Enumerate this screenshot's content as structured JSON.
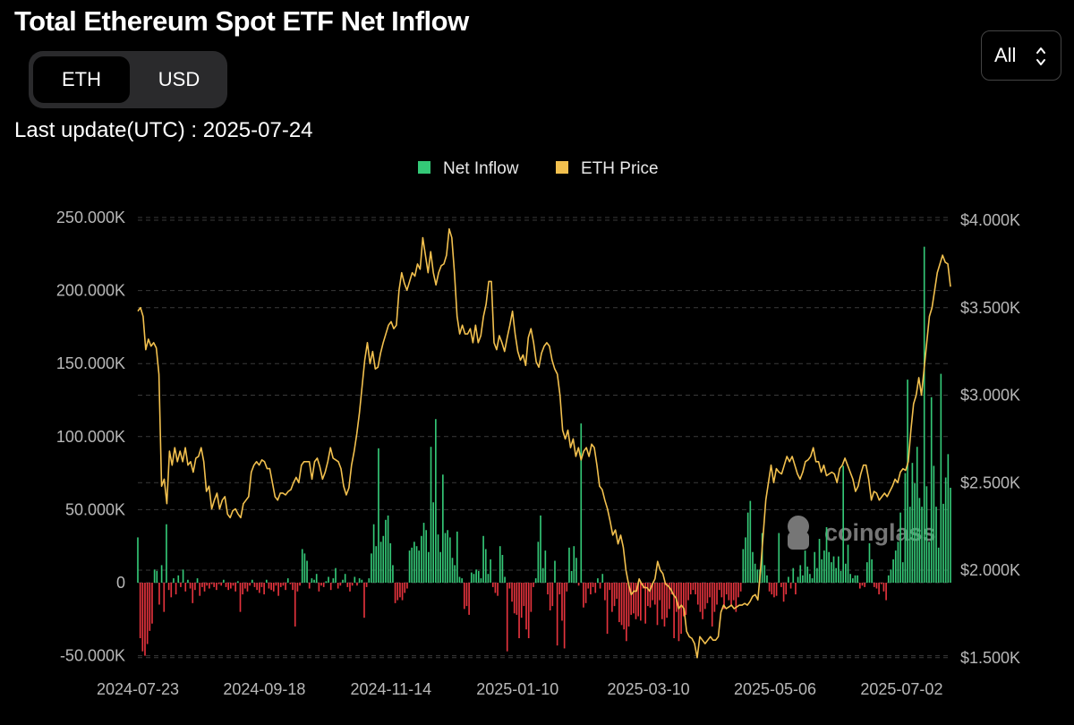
{
  "title": "Total Ethereum Spot ETF Net Inflow",
  "unit_toggle": {
    "options": [
      "ETH",
      "USD"
    ],
    "selected": "ETH"
  },
  "range_select": {
    "value": "All"
  },
  "last_update": {
    "label": "Last update(UTC) : ",
    "value": "2025-07-24"
  },
  "watermark": "coinglass",
  "colors": {
    "inflow_pos": "#34c877",
    "inflow_neg": "#e5333d",
    "price": "#f2c04e",
    "grid": "#3a3a3a",
    "axis_text": "#b8b8b8"
  },
  "chart_data": {
    "type": "bar",
    "legend": [
      {
        "name": "Net Inflow",
        "color": "#34c877"
      },
      {
        "name": "ETH Price",
        "color": "#f2c04e"
      }
    ],
    "legend_position": "top-center",
    "grid": true,
    "x_ticks": [
      "2024-07-23",
      "2024-09-18",
      "2024-11-14",
      "2025-01-10",
      "2025-03-10",
      "2025-05-06",
      "2025-07-02"
    ],
    "y_left": {
      "ticks": [
        250000,
        200000,
        150000,
        100000,
        50000,
        0,
        -50000
      ],
      "labels": [
        "250.000K",
        "200.000K",
        "150.000K",
        "100.000K",
        "50.000K",
        "0",
        "-50.000K"
      ],
      "range": [
        -55000,
        252000
      ]
    },
    "y_right": {
      "ticks": [
        4000,
        3500,
        3000,
        2500,
        2000,
        1500
      ],
      "labels": [
        "$4.000K",
        "$3.500K",
        "$3.000K",
        "$2.500K",
        "$2.000K",
        "$1.500K"
      ],
      "range": [
        1475,
        4010
      ]
    },
    "series": [
      {
        "name": "Net Inflow",
        "axis": "left",
        "x_start": "2024-07-23",
        "x_end": "2025-07-24",
        "values": [
          31000,
          -38000,
          -47000,
          -50000,
          -42000,
          -33000,
          -28000,
          9000,
          8000,
          -15000,
          12000,
          -20000,
          40000,
          -5000,
          -10000,
          3000,
          -8000,
          5000,
          -3000,
          9000,
          -6000,
          2000,
          -4000,
          -14000,
          -5000,
          3000,
          -9000,
          -3000,
          -6000,
          -2000,
          -4000,
          -1000,
          -3000,
          -5000,
          -1000,
          -2000,
          2000,
          -3000,
          -5000,
          -4000,
          -2000,
          -6000,
          1000,
          -20000,
          -8000,
          -4000,
          -6000,
          -2000,
          2000,
          -3000,
          -5000,
          -7000,
          -3000,
          -8000,
          2000,
          -4000,
          -5000,
          -6000,
          -2000,
          -9000,
          -3000,
          -2000,
          -5000,
          3000,
          -1000,
          -5000,
          -30000,
          -6000,
          -2000,
          23000,
          20000,
          15000,
          -4000,
          3000,
          2000,
          6000,
          -6000,
          -2000,
          -3000,
          1000,
          4000,
          -5000,
          3000,
          10000,
          -4000,
          -2000,
          2000,
          6000,
          -3000,
          -6000,
          -2000,
          4000,
          -2000,
          3000,
          2000,
          -24000,
          -3000,
          3000,
          20000,
          40000,
          25000,
          92000,
          28000,
          32000,
          43000,
          46000,
          27000,
          12000,
          -14000,
          -12000,
          -10000,
          -12000,
          -7000,
          -4000,
          22000,
          24000,
          28000,
          25000,
          22000,
          32000,
          41000,
          36000,
          21000,
          93000,
          55000,
          112000,
          33000,
          21000,
          74000,
          34000,
          36000,
          31000,
          17000,
          12000,
          35000,
          4000,
          3000,
          -18000,
          -16000,
          -22000,
          7000,
          6000,
          9000,
          8000,
          3000,
          32000,
          23000,
          6000,
          16000,
          -3000,
          -7000,
          -9000,
          25000,
          19000,
          4000,
          -47000,
          -4000,
          -13000,
          -21000,
          -22000,
          -38000,
          -24000,
          -16000,
          -32000,
          -38000,
          -20000,
          -3000,
          3000,
          28000,
          46000,
          10000,
          22000,
          -8000,
          -19000,
          -16000,
          15000,
          -43000,
          -8000,
          -26000,
          -45000,
          -6000,
          24000,
          8000,
          25000,
          17000,
          -2000,
          109000,
          -17000,
          -14000,
          -4000,
          -8000,
          -3000,
          -7000,
          3000,
          -4000,
          6000,
          -12000,
          -35000,
          -5000,
          -20000,
          -16000,
          -11000,
          -27000,
          -29000,
          -32000,
          -40000,
          -30000,
          -22000,
          -21000,
          -25000,
          -23000,
          -26000,
          -4000,
          -28000,
          -16000,
          -17000,
          -12000,
          -15000,
          -29000,
          -12000,
          -25000,
          -30000,
          -24000,
          -18000,
          -8000,
          -38000,
          -20000,
          -40000,
          -35000,
          -23000,
          -22000,
          -12000,
          -8000,
          -5000,
          -8000,
          -15000,
          -20000,
          -25000,
          -18000,
          -14000,
          -10000,
          -30000,
          -20000,
          -15000,
          -5000,
          -10000,
          -18000,
          -8000,
          -12000,
          -16000,
          -12000,
          -20000,
          -10000,
          -6000,
          23000,
          31000,
          48000,
          56000,
          21000,
          13000,
          9000,
          9000,
          34000,
          12000,
          5000,
          -6000,
          -8000,
          -10000,
          -9000,
          34000,
          -3000,
          -13000,
          -8000,
          4000,
          -4000,
          10000,
          -8000,
          4000,
          12000,
          5000,
          22000,
          11000,
          6000,
          3000,
          21000,
          10000,
          30000,
          16000,
          22000,
          38000,
          21000,
          14000,
          18000,
          10000,
          18000,
          8000,
          80000,
          13000,
          26000,
          6000,
          3000,
          5000,
          5000,
          -4000,
          -2000,
          -3000,
          14000,
          27000,
          16000,
          -3000,
          -4000,
          -8000,
          -1000,
          -6000,
          -12000,
          5000,
          9000,
          16000,
          22000,
          28000,
          48000,
          14000,
          75000,
          139000,
          52000,
          82000,
          68000,
          93000,
          58000,
          52000,
          230000,
          66000,
          28000,
          127000,
          80000,
          52000,
          24000,
          143000,
          54000,
          72000,
          88000,
          65000
        ]
      },
      {
        "name": "ETH Price",
        "axis": "right",
        "x_start": "2024-07-23",
        "x_end": "2025-07-24",
        "values": [
          3480,
          3500,
          3450,
          3260,
          3320,
          3280,
          3300,
          3270,
          3120,
          2480,
          2520,
          2380,
          2680,
          2600,
          2700,
          2620,
          2680,
          2620,
          2700,
          2600,
          2620,
          2560,
          2640,
          2650,
          2700,
          2620,
          2450,
          2480,
          2350,
          2400,
          2440,
          2350,
          2400,
          2420,
          2320,
          2300,
          2340,
          2350,
          2320,
          2300,
          2380,
          2400,
          2420,
          2560,
          2600,
          2620,
          2600,
          2630,
          2620,
          2580,
          2580,
          2500,
          2420,
          2400,
          2440,
          2440,
          2430,
          2450,
          2460,
          2500,
          2530,
          2500,
          2600,
          2620,
          2620,
          2620,
          2520,
          2620,
          2640,
          2590,
          2520,
          2560,
          2620,
          2700,
          2640,
          2630,
          2620,
          2580,
          2480,
          2430,
          2470,
          2600,
          2680,
          2780,
          2900,
          3050,
          3200,
          3300,
          3180,
          3250,
          3150,
          3160,
          3240,
          3300,
          3350,
          3400,
          3420,
          3380,
          3400,
          3600,
          3700,
          3640,
          3600,
          3650,
          3700,
          3680,
          3750,
          3720,
          3900,
          3800,
          3700,
          3820,
          3700,
          3630,
          3700,
          3740,
          3750,
          3800,
          3950,
          3900,
          3700,
          3450,
          3350,
          3400,
          3350,
          3350,
          3380,
          3300,
          3400,
          3300,
          3340,
          3450,
          3520,
          3650,
          3650,
          3300,
          3260,
          3340,
          3300,
          3250,
          3330,
          3400,
          3480,
          3350,
          3250,
          3200,
          3230,
          3170,
          3330,
          3380,
          3300,
          3190,
          3160,
          3240,
          3280,
          3300,
          3280,
          3200,
          3150,
          3120,
          3000,
          2800,
          2750,
          2800,
          2700,
          2750,
          2650,
          2700,
          2630,
          2680,
          2700,
          2650,
          2720,
          2700,
          2600,
          2480,
          2460,
          2400,
          2350,
          2280,
          2200,
          2230,
          2150,
          2200,
          2130,
          2000,
          1920,
          1860,
          1880,
          1880,
          1950,
          1920,
          1900,
          1900,
          1880,
          1920,
          1950,
          2050,
          2000,
          1980,
          1920,
          1910,
          1890,
          1860,
          1840,
          1780,
          1800,
          1780,
          1650,
          1620,
          1610,
          1580,
          1500,
          1620,
          1600,
          1580,
          1600,
          1620,
          1600,
          1600,
          1620,
          1760,
          1800,
          1780,
          1790,
          1800,
          1780,
          1790,
          1800,
          1800,
          1810,
          1800,
          1820,
          1850,
          1860,
          1830,
          2000,
          2200,
          2400,
          2500,
          2600,
          2500,
          2580,
          2560,
          2550,
          2600,
          2650,
          2620,
          2650,
          2600,
          2550,
          2520,
          2560,
          2620,
          2630,
          2650,
          2700,
          2620,
          2620,
          2560,
          2600,
          2540,
          2550,
          2560,
          2550,
          2500,
          2580,
          2600,
          2640,
          2600,
          2560,
          2520,
          2450,
          2480,
          2550,
          2600,
          2600,
          2520,
          2400,
          2450,
          2440,
          2400,
          2420,
          2440,
          2420,
          2450,
          2480,
          2520,
          2500,
          2560,
          2580,
          2570,
          2620,
          2800,
          2950,
          3000,
          3100,
          3000,
          3150,
          3300,
          3450,
          3500,
          3600,
          3700,
          3750,
          3800,
          3760,
          3750,
          3620
        ]
      }
    ]
  }
}
